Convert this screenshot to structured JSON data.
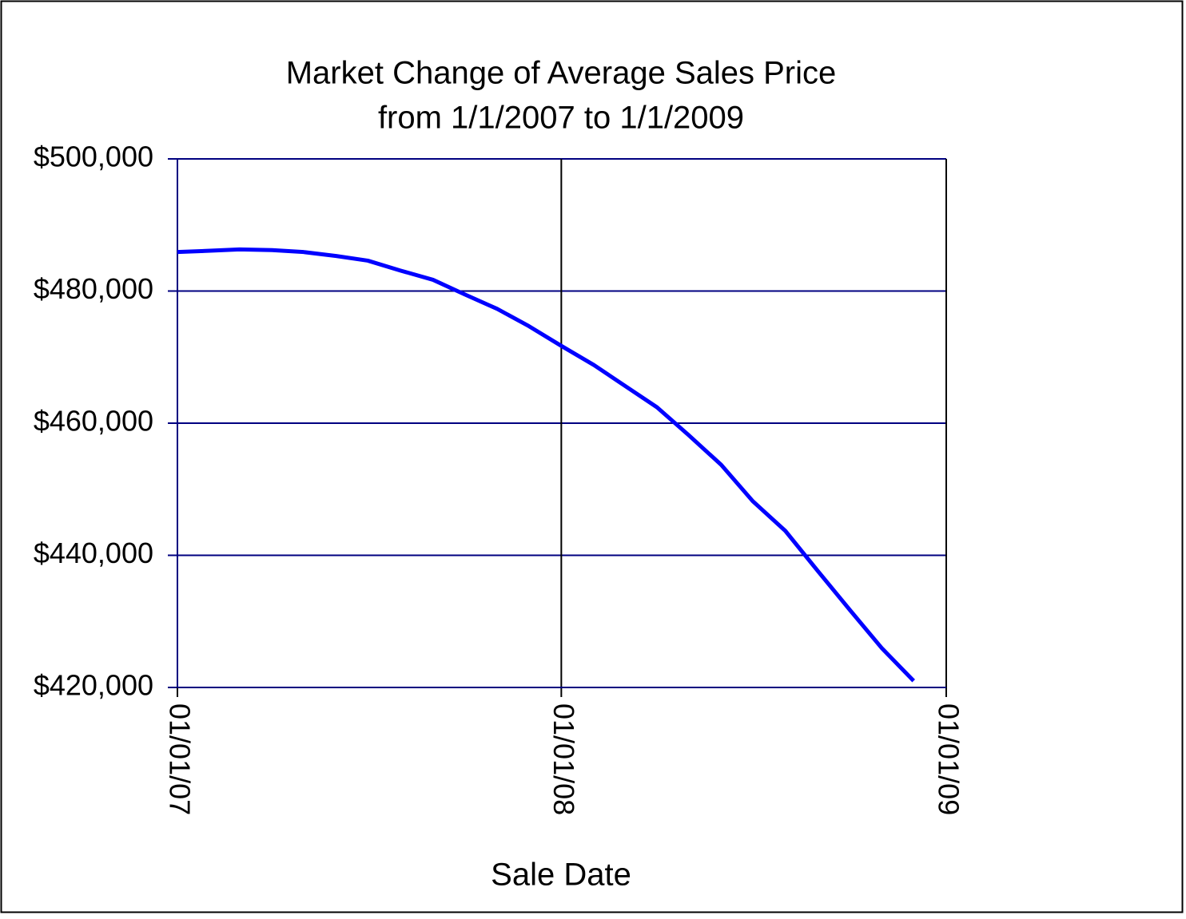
{
  "chart_data": {
    "type": "line",
    "title": "Market Change of Average Sales Price",
    "subtitle": "from 1/1/2007 to 1/1/2009",
    "x_label": "Sale Date",
    "x": [
      "2007-01-01",
      "2007-02-01",
      "2007-03-01",
      "2007-04-01",
      "2007-05-01",
      "2007-06-01",
      "2007-07-01",
      "2007-08-01",
      "2007-09-01",
      "2007-10-01",
      "2007-11-01",
      "2007-12-01",
      "2008-01-01",
      "2008-02-01",
      "2008-03-01",
      "2008-04-01",
      "2008-05-01",
      "2008-06-01",
      "2008-07-01",
      "2008-08-01",
      "2008-09-01",
      "2008-10-01",
      "2008-11-01",
      "2008-12-01"
    ],
    "series": [
      {
        "name": "Average Sales Price",
        "color": "#0000ff",
        "values": [
          485900,
          486100,
          486300,
          486200,
          485900,
          485300,
          484600,
          483100,
          481700,
          479500,
          477300,
          474700,
          471700,
          468800,
          465700,
          462400,
          458200,
          453700,
          448200,
          443700,
          437600,
          431800,
          425900,
          421000
        ]
      }
    ],
    "xlim": [
      "2007-01-01",
      "2009-01-01"
    ],
    "xticks": [
      {
        "value": "2007-01-01",
        "label": "01/01/07"
      },
      {
        "value": "2008-01-01",
        "label": "01/01/08"
      },
      {
        "value": "2009-01-01",
        "label": "01/01/09"
      }
    ],
    "ylim": [
      420000,
      500000
    ],
    "yticks": [
      {
        "value": 420000,
        "label": "$420,000"
      },
      {
        "value": 440000,
        "label": "$440,000"
      },
      {
        "value": 460000,
        "label": "$460,000"
      },
      {
        "value": 480000,
        "label": "$480,000"
      },
      {
        "value": 500000,
        "label": "$500,000"
      }
    ],
    "grid": true
  }
}
